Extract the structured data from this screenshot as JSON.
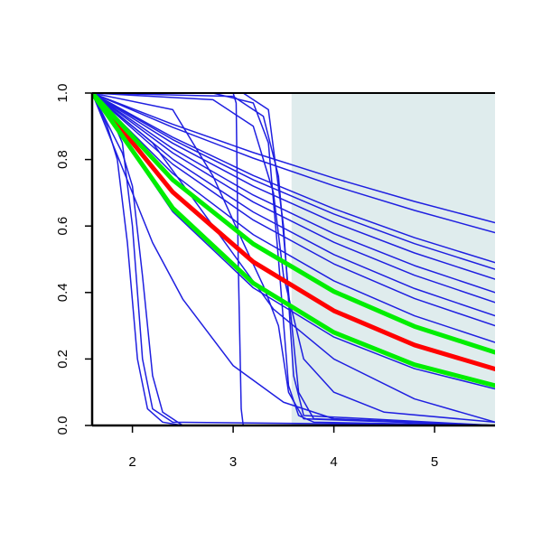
{
  "chart_data": {
    "type": "line",
    "xlim": [
      1.6,
      5.6
    ],
    "ylim": [
      0,
      1
    ],
    "xticks": [
      2,
      3,
      4,
      5
    ],
    "yticks": [
      {
        "value": 0,
        "label": "0.0"
      },
      0.2,
      0.4,
      0.6,
      0.8,
      {
        "value": 1,
        "label": "1.0"
      }
    ],
    "shaded_region": {
      "xmin": 3.58,
      "xmax": 5.6,
      "color": "#dfeced"
    },
    "series": [
      {
        "color": "#1f1fe0",
        "linewidth": 1.5,
        "x": [
          1.6,
          2.4,
          3.2,
          4.0,
          4.8,
          5.6
        ],
        "values": [
          1,
          0.906,
          0.821,
          0.744,
          0.674,
          0.61
        ]
      },
      {
        "color": "#1f1fe0",
        "linewidth": 1.5,
        "x": [
          1.6,
          2.4,
          3.2,
          4.0,
          4.8,
          5.6
        ],
        "values": [
          1,
          0.897,
          0.804,
          0.721,
          0.647,
          0.58
        ]
      },
      {
        "color": "#1f1fe0",
        "linewidth": 1.5,
        "x": [
          1.6,
          2.4,
          3.2,
          4.0,
          4.8,
          5.6
        ],
        "values": [
          1,
          0.867,
          0.752,
          0.652,
          0.565,
          0.49
        ]
      },
      {
        "color": "#1f1fe0",
        "linewidth": 1.5,
        "x": [
          1.6,
          2.4,
          3.2,
          4.0,
          4.8,
          5.6
        ],
        "values": [
          1,
          0.86,
          0.739,
          0.636,
          0.547,
          0.47
        ]
      },
      {
        "color": "#1f1fe0",
        "linewidth": 1.5,
        "x": [
          1.6,
          2.4,
          3.2,
          4.0,
          4.8,
          5.6
        ],
        "values": [
          1,
          0.849,
          0.72,
          0.611,
          0.519,
          0.44
        ]
      },
      {
        "color": "#1f1fe0",
        "linewidth": 1.5,
        "x": [
          1.6,
          2.4,
          3.2,
          4.0,
          4.8,
          5.6
        ],
        "values": [
          1,
          0.833,
          0.693,
          0.577,
          0.481,
          0.4
        ]
      },
      {
        "color": "#1f1fe0",
        "linewidth": 1.5,
        "x": [
          1.6,
          2.4,
          3.2,
          4.0,
          4.8,
          5.6
        ],
        "values": [
          1,
          0.82,
          0.672,
          0.551,
          0.452,
          0.37
        ]
      },
      {
        "color": "#1f1fe0",
        "linewidth": 1.5,
        "x": [
          1.6,
          2.4,
          3.2,
          4.0,
          4.8,
          5.6
        ],
        "values": [
          1,
          0.801,
          0.642,
          0.514,
          0.412,
          0.33
        ]
      },
      {
        "color": "#1f1fe0",
        "linewidth": 1.5,
        "x": [
          1.6,
          2.4,
          3.2,
          4.0,
          4.8,
          5.6
        ],
        "values": [
          1,
          0.786,
          0.618,
          0.486,
          0.382,
          0.3
        ]
      },
      {
        "color": "#1f1fe0",
        "linewidth": 1.5,
        "x": [
          1.6,
          2.4,
          3.2,
          4.0,
          4.8,
          5.6
        ],
        "values": [
          1,
          0.758,
          0.574,
          0.435,
          0.33,
          0.25
        ]
      },
      {
        "color": "#1f1fe0",
        "linewidth": 1.5,
        "x": [
          1.6,
          2.4,
          3.2,
          4.0,
          4.8,
          5.6
        ],
        "values": [
          1,
          0.643,
          0.414,
          0.266,
          0.171,
          0.11
        ]
      },
      {
        "color": "#1f1fe0",
        "linewidth": 1.5,
        "x": [
          1.6,
          1.75,
          1.85,
          1.95,
          2.05,
          2.15,
          2.3,
          2.5,
          5.6
        ],
        "values": [
          1,
          0.9,
          0.8,
          0.55,
          0.2,
          0.05,
          0.01,
          0,
          0
        ]
      },
      {
        "color": "#1f1fe0",
        "linewidth": 1.5,
        "x": [
          1.6,
          1.8,
          1.9,
          2.0,
          2.1,
          2.2,
          2.4,
          5.6
        ],
        "values": [
          1,
          0.92,
          0.85,
          0.6,
          0.2,
          0.05,
          0.01,
          0
        ]
      },
      {
        "color": "#1f1fe0",
        "linewidth": 1.5,
        "x": [
          1.6,
          1.9,
          2.0,
          2.1,
          2.2,
          2.3,
          2.5,
          5.6
        ],
        "values": [
          1,
          0.82,
          0.72,
          0.45,
          0.15,
          0.04,
          0,
          0
        ]
      },
      {
        "color": "#1f1fe0",
        "linewidth": 1.5,
        "x": [
          1.6,
          1.8,
          2.0,
          2.2,
          2.5,
          3.0,
          3.5,
          4.0,
          5.6
        ],
        "values": [
          1,
          0.85,
          0.7,
          0.55,
          0.38,
          0.18,
          0.07,
          0.02,
          0
        ]
      },
      {
        "color": "#1f1fe0",
        "linewidth": 1.5,
        "x": [
          1.6,
          2.2,
          2.8,
          3.4,
          4.0,
          4.8,
          5.6
        ],
        "values": [
          1,
          0.85,
          0.6,
          0.35,
          0.2,
          0.08,
          0.01
        ]
      },
      {
        "color": "#1f1fe0",
        "linewidth": 1.5,
        "x": [
          1.6,
          3.0,
          3.03,
          3.05,
          3.08,
          3.1,
          5.6
        ],
        "values": [
          1,
          1,
          0.97,
          0.5,
          0.05,
          0,
          0
        ]
      },
      {
        "color": "#1f1fe0",
        "linewidth": 1.5,
        "x": [
          1.6,
          2.8,
          3.2,
          3.35,
          3.45,
          3.55,
          3.65,
          3.8,
          5.6
        ],
        "values": [
          1,
          1,
          0.97,
          0.85,
          0.5,
          0.12,
          0.03,
          0.01,
          0
        ]
      },
      {
        "color": "#1f1fe0",
        "linewidth": 1.5,
        "x": [
          1.6,
          3.0,
          3.3,
          3.45,
          3.55,
          3.65,
          3.8,
          5.6
        ],
        "values": [
          1,
          0.99,
          0.93,
          0.75,
          0.4,
          0.1,
          0.02,
          0
        ]
      },
      {
        "color": "#1f1fe0",
        "linewidth": 1.5,
        "x": [
          1.6,
          2.8,
          3.2,
          3.4,
          3.5,
          3.7,
          4.0,
          4.5,
          5.6
        ],
        "values": [
          1,
          0.98,
          0.9,
          0.7,
          0.45,
          0.2,
          0.1,
          0.04,
          0.01
        ]
      },
      {
        "color": "#1f1fe0",
        "linewidth": 1.5,
        "x": [
          1.6,
          2.4,
          2.8,
          3.1,
          3.3,
          3.45,
          3.55,
          3.7,
          5.6
        ],
        "values": [
          1,
          0.95,
          0.75,
          0.55,
          0.42,
          0.3,
          0.1,
          0.02,
          0
        ]
      },
      {
        "color": "#1f1fe0",
        "linewidth": 1.5,
        "x": [
          1.6,
          3.1,
          3.35,
          3.5,
          3.6,
          3.7,
          5.6
        ],
        "values": [
          1,
          1,
          0.95,
          0.6,
          0.15,
          0.03,
          0
        ]
      },
      {
        "color": "#ff0000",
        "linewidth": 5,
        "x": [
          1.6,
          2.4,
          3.2,
          4.0,
          4.8,
          5.6
        ],
        "values": [
          1,
          0.702,
          0.492,
          0.345,
          0.242,
          0.17
        ]
      },
      {
        "color": "#00ee00",
        "linewidth": 5,
        "x": [
          1.6,
          2.4,
          3.2,
          4.0,
          4.8,
          5.6
        ],
        "values": [
          1,
          0.739,
          0.546,
          0.403,
          0.298,
          0.22
        ]
      },
      {
        "color": "#00ee00",
        "linewidth": 5,
        "x": [
          1.6,
          2.4,
          3.2,
          4.0,
          4.8,
          5.6
        ],
        "values": [
          1,
          0.654,
          0.428,
          0.28,
          0.183,
          0.12
        ]
      }
    ]
  }
}
